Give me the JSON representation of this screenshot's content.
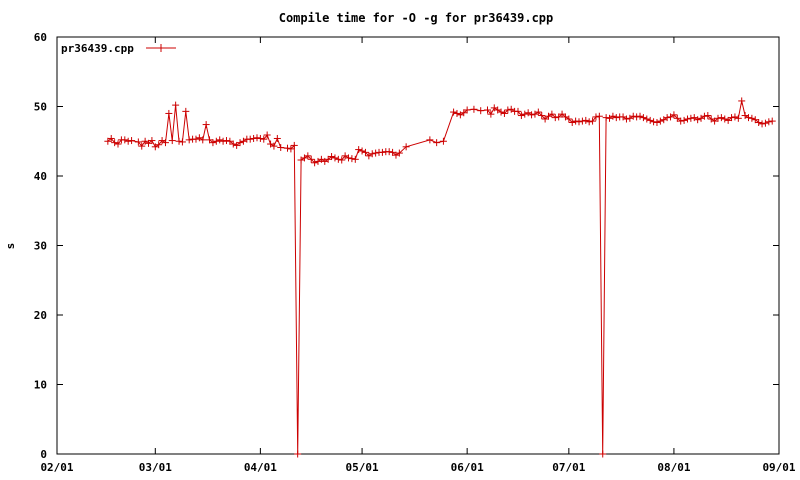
{
  "chart_data": {
    "type": "line",
    "title": "Compile time for -O -g for pr36439.cpp",
    "xlabel": "",
    "ylabel": "s",
    "ylim": [
      0,
      60
    ],
    "yticks": [
      0,
      10,
      20,
      30,
      40,
      50,
      60
    ],
    "xlim": [
      "2008-02-01",
      "2008-09-01"
    ],
    "xticks": [
      {
        "date": "2008-02-01",
        "label": "02/01"
      },
      {
        "date": "2008-03-01",
        "label": "03/01"
      },
      {
        "date": "2008-04-01",
        "label": "04/01"
      },
      {
        "date": "2008-05-01",
        "label": "05/01"
      },
      {
        "date": "2008-06-01",
        "label": "06/01"
      },
      {
        "date": "2008-07-01",
        "label": "07/01"
      },
      {
        "date": "2008-08-01",
        "label": "08/01"
      },
      {
        "date": "2008-09-01",
        "label": "09/01"
      }
    ],
    "grid": false,
    "legend_position": "top-left",
    "color": "#cc0000",
    "series": [
      {
        "name": "pr36439.cpp",
        "points": [
          [
            "2008-02-16",
            45.0
          ],
          [
            "2008-02-17",
            45.4
          ],
          [
            "2008-02-18",
            44.8
          ],
          [
            "2008-02-19",
            44.6
          ],
          [
            "2008-02-20",
            45.2
          ],
          [
            "2008-02-21",
            45.2
          ],
          [
            "2008-02-22",
            45.0
          ],
          [
            "2008-02-23",
            45.1
          ],
          [
            "2008-02-25",
            44.9
          ],
          [
            "2008-02-26",
            44.3
          ],
          [
            "2008-02-27",
            45.0
          ],
          [
            "2008-02-28",
            44.7
          ],
          [
            "2008-02-29",
            45.1
          ],
          [
            "2008-03-01",
            44.2
          ],
          [
            "2008-03-02",
            44.5
          ],
          [
            "2008-03-03",
            45.1
          ],
          [
            "2008-03-04",
            44.8
          ],
          [
            "2008-03-05",
            49.0
          ],
          [
            "2008-03-06",
            45.1
          ],
          [
            "2008-03-07",
            50.2
          ],
          [
            "2008-03-08",
            45.0
          ],
          [
            "2008-03-09",
            44.9
          ],
          [
            "2008-03-10",
            49.3
          ],
          [
            "2008-03-11",
            45.2
          ],
          [
            "2008-03-12",
            45.3
          ],
          [
            "2008-03-13",
            45.3
          ],
          [
            "2008-03-14",
            45.5
          ],
          [
            "2008-03-15",
            45.2
          ],
          [
            "2008-03-16",
            47.4
          ],
          [
            "2008-03-17",
            45.2
          ],
          [
            "2008-03-18",
            44.8
          ],
          [
            "2008-03-19",
            45.0
          ],
          [
            "2008-03-20",
            45.2
          ],
          [
            "2008-03-21",
            45.0
          ],
          [
            "2008-03-22",
            45.1
          ],
          [
            "2008-03-23",
            45.0
          ],
          [
            "2008-03-24",
            44.6
          ],
          [
            "2008-03-25",
            44.4
          ],
          [
            "2008-03-26",
            44.8
          ],
          [
            "2008-03-27",
            45.0
          ],
          [
            "2008-03-28",
            45.3
          ],
          [
            "2008-03-29",
            45.3
          ],
          [
            "2008-03-30",
            45.4
          ],
          [
            "2008-03-31",
            45.5
          ],
          [
            "2008-04-01",
            45.4
          ],
          [
            "2008-04-02",
            45.3
          ],
          [
            "2008-04-03",
            45.9
          ],
          [
            "2008-04-04",
            44.6
          ],
          [
            "2008-04-05",
            44.3
          ],
          [
            "2008-04-06",
            45.4
          ],
          [
            "2008-04-07",
            44.1
          ],
          [
            "2008-04-09",
            44.0
          ],
          [
            "2008-04-10",
            43.9
          ],
          [
            "2008-04-11",
            44.4
          ],
          [
            "2008-04-12",
            0.0
          ],
          [
            "2008-04-13",
            42.3
          ],
          [
            "2008-04-14",
            42.6
          ],
          [
            "2008-04-15",
            42.9
          ],
          [
            "2008-04-16",
            42.4
          ],
          [
            "2008-04-17",
            41.9
          ],
          [
            "2008-04-18",
            42.1
          ],
          [
            "2008-04-19",
            42.4
          ],
          [
            "2008-04-20",
            42.1
          ],
          [
            "2008-04-21",
            42.4
          ],
          [
            "2008-04-22",
            42.8
          ],
          [
            "2008-04-23",
            42.6
          ],
          [
            "2008-04-24",
            42.4
          ],
          [
            "2008-04-25",
            42.3
          ],
          [
            "2008-04-26",
            42.9
          ],
          [
            "2008-04-27",
            42.6
          ],
          [
            "2008-04-28",
            42.5
          ],
          [
            "2008-04-29",
            42.4
          ],
          [
            "2008-04-30",
            43.8
          ],
          [
            "2008-05-01",
            43.6
          ],
          [
            "2008-05-02",
            43.4
          ],
          [
            "2008-05-03",
            42.9
          ],
          [
            "2008-05-04",
            43.2
          ],
          [
            "2008-05-05",
            43.3
          ],
          [
            "2008-05-06",
            43.4
          ],
          [
            "2008-05-07",
            43.4
          ],
          [
            "2008-05-08",
            43.5
          ],
          [
            "2008-05-09",
            43.5
          ],
          [
            "2008-05-10",
            43.4
          ],
          [
            "2008-05-11",
            43.0
          ],
          [
            "2008-05-12",
            43.3
          ],
          [
            "2008-05-14",
            44.2
          ],
          [
            "2008-05-21",
            45.2
          ],
          [
            "2008-05-23",
            44.8
          ],
          [
            "2008-05-25",
            45.0
          ],
          [
            "2008-05-28",
            49.2
          ],
          [
            "2008-05-29",
            49.0
          ],
          [
            "2008-05-30",
            48.8
          ],
          [
            "2008-05-31",
            49.1
          ],
          [
            "2008-06-01",
            49.5
          ],
          [
            "2008-06-03",
            49.6
          ],
          [
            "2008-06-05",
            49.4
          ],
          [
            "2008-06-07",
            49.5
          ],
          [
            "2008-06-08",
            48.9
          ],
          [
            "2008-06-09",
            49.8
          ],
          [
            "2008-06-10",
            49.5
          ],
          [
            "2008-06-11",
            49.2
          ],
          [
            "2008-06-12",
            49.0
          ],
          [
            "2008-06-13",
            49.5
          ],
          [
            "2008-06-14",
            49.6
          ],
          [
            "2008-06-15",
            49.3
          ],
          [
            "2008-06-16",
            49.3
          ],
          [
            "2008-06-17",
            48.7
          ],
          [
            "2008-06-18",
            48.9
          ],
          [
            "2008-06-19",
            49.1
          ],
          [
            "2008-06-20",
            48.8
          ],
          [
            "2008-06-21",
            48.9
          ],
          [
            "2008-06-22",
            49.2
          ],
          [
            "2008-06-23",
            48.7
          ],
          [
            "2008-06-24",
            48.2
          ],
          [
            "2008-06-25",
            48.6
          ],
          [
            "2008-06-26",
            48.9
          ],
          [
            "2008-06-27",
            48.4
          ],
          [
            "2008-06-28",
            48.5
          ],
          [
            "2008-06-29",
            48.9
          ],
          [
            "2008-06-30",
            48.5
          ],
          [
            "2008-07-01",
            48.2
          ],
          [
            "2008-07-02",
            47.7
          ],
          [
            "2008-07-03",
            47.9
          ],
          [
            "2008-07-04",
            47.8
          ],
          [
            "2008-07-05",
            47.9
          ],
          [
            "2008-07-06",
            48.0
          ],
          [
            "2008-07-07",
            47.8
          ],
          [
            "2008-07-08",
            47.9
          ],
          [
            "2008-07-09",
            48.5
          ],
          [
            "2008-07-10",
            48.6
          ],
          [
            "2008-07-11",
            0.0
          ],
          [
            "2008-07-12",
            48.4
          ],
          [
            "2008-07-13",
            48.3
          ],
          [
            "2008-07-14",
            48.6
          ],
          [
            "2008-07-15",
            48.4
          ],
          [
            "2008-07-16",
            48.5
          ],
          [
            "2008-07-17",
            48.5
          ],
          [
            "2008-07-18",
            48.2
          ],
          [
            "2008-07-19",
            48.3
          ],
          [
            "2008-07-20",
            48.6
          ],
          [
            "2008-07-21",
            48.5
          ],
          [
            "2008-07-22",
            48.6
          ],
          [
            "2008-07-23",
            48.4
          ],
          [
            "2008-07-24",
            48.2
          ],
          [
            "2008-07-25",
            48.0
          ],
          [
            "2008-07-26",
            47.8
          ],
          [
            "2008-07-27",
            47.7
          ],
          [
            "2008-07-28",
            47.9
          ],
          [
            "2008-07-29",
            48.1
          ],
          [
            "2008-07-30",
            48.4
          ],
          [
            "2008-07-31",
            48.5
          ],
          [
            "2008-08-01",
            48.8
          ],
          [
            "2008-08-02",
            48.3
          ],
          [
            "2008-08-03",
            47.9
          ],
          [
            "2008-08-04",
            48.0
          ],
          [
            "2008-08-05",
            48.2
          ],
          [
            "2008-08-06",
            48.3
          ],
          [
            "2008-08-07",
            48.4
          ],
          [
            "2008-08-08",
            48.1
          ],
          [
            "2008-08-09",
            48.3
          ],
          [
            "2008-08-10",
            48.6
          ],
          [
            "2008-08-11",
            48.7
          ],
          [
            "2008-08-12",
            48.2
          ],
          [
            "2008-08-13",
            47.9
          ],
          [
            "2008-08-14",
            48.3
          ],
          [
            "2008-08-15",
            48.4
          ],
          [
            "2008-08-16",
            48.2
          ],
          [
            "2008-08-17",
            48.0
          ],
          [
            "2008-08-18",
            48.4
          ],
          [
            "2008-08-19",
            48.5
          ],
          [
            "2008-08-20",
            48.3
          ],
          [
            "2008-08-21",
            50.8
          ],
          [
            "2008-08-22",
            48.7
          ],
          [
            "2008-08-23",
            48.4
          ],
          [
            "2008-08-24",
            48.3
          ],
          [
            "2008-08-25",
            48.1
          ],
          [
            "2008-08-26",
            47.7
          ],
          [
            "2008-08-27",
            47.5
          ],
          [
            "2008-08-28",
            47.6
          ],
          [
            "2008-08-29",
            47.8
          ],
          [
            "2008-08-30",
            47.9
          ]
        ]
      }
    ]
  }
}
